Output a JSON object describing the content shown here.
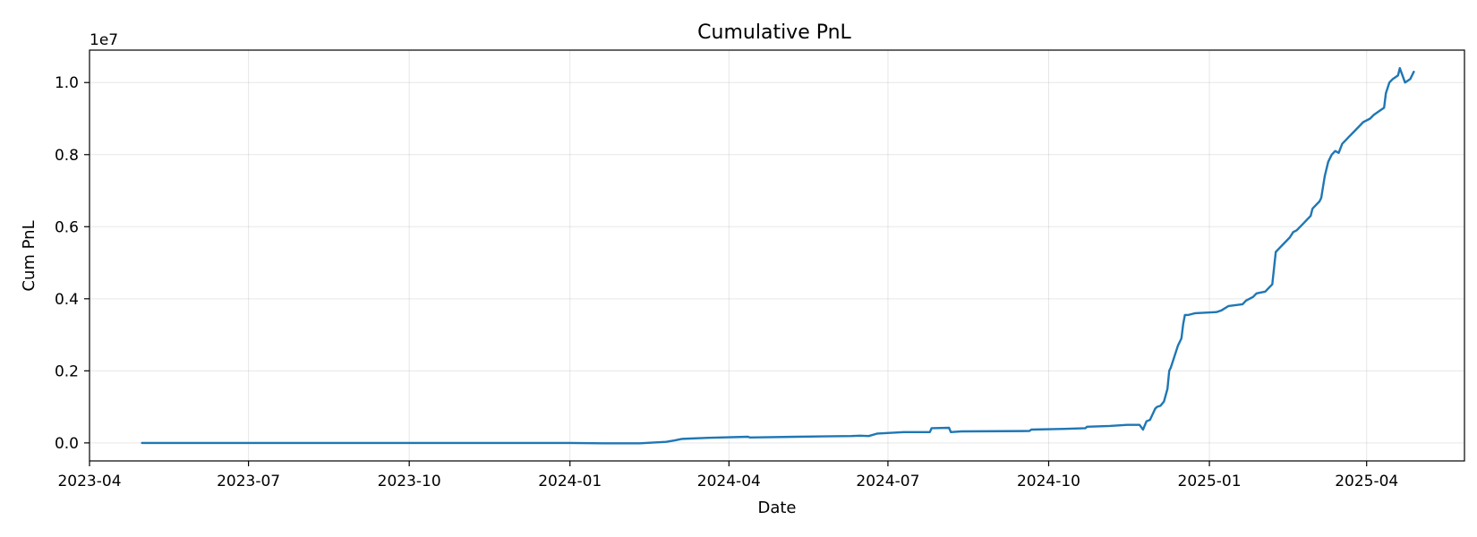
{
  "chart_data": {
    "type": "line",
    "title": "Cumulative PnL",
    "xlabel": "Date",
    "ylabel": "Cum PnL",
    "offset_text": "1e7",
    "xlim": [
      "2023-04-01",
      "2025-05-27"
    ],
    "ylim": [
      -0.05,
      1.09
    ],
    "x_ticks": [
      "2023-04-01",
      "2023-07-01",
      "2023-10-01",
      "2024-01-01",
      "2024-04-01",
      "2024-07-01",
      "2024-10-01",
      "2025-01-01",
      "2025-04-01"
    ],
    "x_tick_labels": [
      "2023-04",
      "2023-07",
      "2023-10",
      "2024-01",
      "2024-04",
      "2024-07",
      "2024-10",
      "2025-01",
      "2025-04"
    ],
    "y_ticks": [
      0.0,
      0.2,
      0.4,
      0.6,
      0.8,
      1.0
    ],
    "y_tick_labels": [
      "0.0",
      "0.2",
      "0.4",
      "0.6",
      "0.8",
      "1.0"
    ],
    "grid": true,
    "legend": "none",
    "series": [
      {
        "color": "#1f77b4",
        "x": [
          "2023-05-01",
          "2023-08-01",
          "2023-11-01",
          "2024-01-01",
          "2024-01-20",
          "2024-02-10",
          "2024-02-25",
          "2024-03-01",
          "2024-03-05",
          "2024-03-20",
          "2024-04-12",
          "2024-04-13",
          "2024-05-10",
          "2024-05-25",
          "2024-06-10",
          "2024-06-15",
          "2024-06-20",
          "2024-06-25",
          "2024-07-10",
          "2024-07-25",
          "2024-07-26",
          "2024-08-05",
          "2024-08-06",
          "2024-08-12",
          "2024-09-20",
          "2024-09-21",
          "2024-10-10",
          "2024-10-22",
          "2024-10-23",
          "2024-11-05",
          "2024-11-15",
          "2024-11-22",
          "2024-11-24",
          "2024-11-26",
          "2024-11-28",
          "2024-12-01",
          "2024-12-02",
          "2024-12-04",
          "2024-12-06",
          "2024-12-08",
          "2024-12-09",
          "2024-12-10",
          "2024-12-12",
          "2024-12-14",
          "2024-12-16",
          "2024-12-17",
          "2024-12-18",
          "2024-12-20",
          "2024-12-24",
          "2025-01-05",
          "2025-01-08",
          "2025-01-12",
          "2025-01-20",
          "2025-01-22",
          "2025-01-26",
          "2025-01-28",
          "2025-02-02",
          "2025-02-04",
          "2025-02-06",
          "2025-02-08",
          "2025-02-10",
          "2025-02-12",
          "2025-02-14",
          "2025-02-16",
          "2025-02-18",
          "2025-02-20",
          "2025-02-22",
          "2025-02-24",
          "2025-02-26",
          "2025-02-28",
          "2025-03-01",
          "2025-03-03",
          "2025-03-05",
          "2025-03-06",
          "2025-03-08",
          "2025-03-10",
          "2025-03-12",
          "2025-03-14",
          "2025-03-16",
          "2025-03-18",
          "2025-03-20",
          "2025-03-22",
          "2025-03-24",
          "2025-03-26",
          "2025-03-28",
          "2025-03-30",
          "2025-04-01",
          "2025-04-03",
          "2025-04-05",
          "2025-04-08",
          "2025-04-11",
          "2025-04-12",
          "2025-04-14",
          "2025-04-16",
          "2025-04-19",
          "2025-04-20",
          "2025-04-23",
          "2025-04-26",
          "2025-04-28"
        ],
        "values": [
          0.0,
          0.0,
          0.0,
          0.0,
          -0.001,
          -0.001,
          0.003,
          0.007,
          0.011,
          0.014,
          0.017,
          0.015,
          0.017,
          0.018,
          0.019,
          0.02,
          0.019,
          0.026,
          0.03,
          0.03,
          0.041,
          0.042,
          0.03,
          0.032,
          0.033,
          0.037,
          0.039,
          0.041,
          0.045,
          0.047,
          0.05,
          0.05,
          0.037,
          0.06,
          0.064,
          0.095,
          0.1,
          0.103,
          0.115,
          0.15,
          0.2,
          0.21,
          0.24,
          0.27,
          0.29,
          0.33,
          0.355,
          0.355,
          0.36,
          0.363,
          0.368,
          0.38,
          0.385,
          0.395,
          0.405,
          0.415,
          0.42,
          0.43,
          0.44,
          0.53,
          0.54,
          0.55,
          0.56,
          0.57,
          0.585,
          0.59,
          0.6,
          0.61,
          0.62,
          0.63,
          0.65,
          0.66,
          0.67,
          0.68,
          0.74,
          0.78,
          0.8,
          0.81,
          0.805,
          0.83,
          0.84,
          0.85,
          0.86,
          0.87,
          0.88,
          0.89,
          0.895,
          0.9,
          0.91,
          0.92,
          0.93,
          0.97,
          1.0,
          1.01,
          1.02,
          1.04,
          1.0,
          1.01,
          1.03
        ]
      }
    ]
  }
}
